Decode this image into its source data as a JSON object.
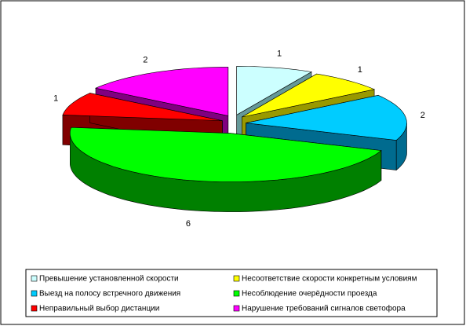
{
  "chart_data": {
    "type": "pie3d",
    "categories": [
      "Превышение установленной скорости",
      "Несоответствие скорости конкретным условиям",
      "Выезд на полосу встречного движения",
      "Несоблюдение очерёдности проезда",
      "Неправильный выбор дистанции",
      "Нарушение требований сигналов светофора"
    ],
    "values": [
      1,
      1,
      2,
      6,
      1,
      2
    ],
    "colors": [
      "#ccffff",
      "#ffff00",
      "#00ccff",
      "#00ff00",
      "#ff0000",
      "#ff00ff"
    ],
    "side_colors": [
      "#669999",
      "#999900",
      "#006b8f",
      "#008000",
      "#800000",
      "#800080"
    ],
    "legend": "bottom"
  }
}
